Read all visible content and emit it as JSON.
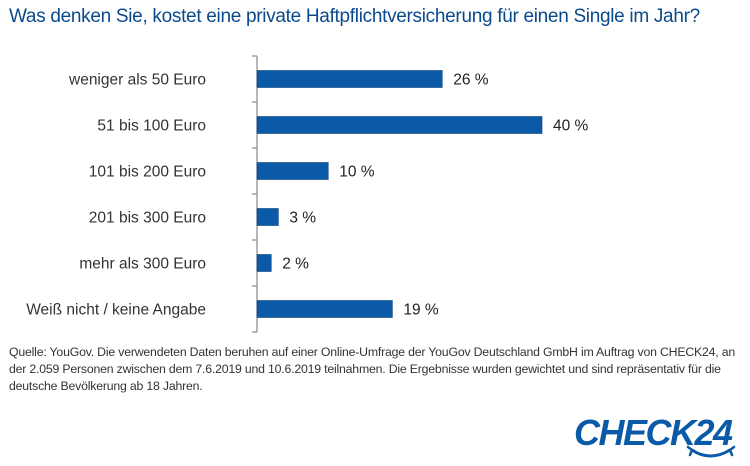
{
  "title": "Was denken Sie, kostet eine private Haftpflichtversicherung für einen Single im Jahr?",
  "source": "Quelle: YouGov. Die verwendeten Daten beruhen auf einer Online-Umfrage der YouGov Deutschland GmbH im Auftrag von CHECK24, an der 2.059 Personen zwischen dem 7.6.2019 und 10.6.2019 teilnahmen. Die Ergebnisse wurden gewichtet und sind repräsentativ für die deutsche Bevölkerung ab 18 Jahren.",
  "logo": {
    "text": "CHECK24",
    "color": "#0a5aa8",
    "icon": "smile-arrow-icon"
  },
  "colors": {
    "bar": "#0a5aa8",
    "title": "#0a4a8c",
    "axis": "#888888"
  },
  "chart_data": {
    "type": "bar",
    "orientation": "horizontal",
    "title": "Was denken Sie, kostet eine private Haftpflichtversicherung für einen Single im Jahr?",
    "categories": [
      "weniger als 50 Euro",
      "51 bis 100 Euro",
      "101 bis 200 Euro",
      "201 bis 300 Euro",
      "mehr als 300 Euro",
      "Weiß nicht / keine Angabe"
    ],
    "values": [
      26,
      40,
      10,
      3,
      2,
      19
    ],
    "value_labels": [
      "26 %",
      "40 %",
      "10 %",
      "3 %",
      "2 %",
      "19 %"
    ],
    "unit": "%",
    "xlabel": "",
    "ylabel": "",
    "xlim": [
      0,
      40
    ],
    "grid": false,
    "legend": "none"
  }
}
